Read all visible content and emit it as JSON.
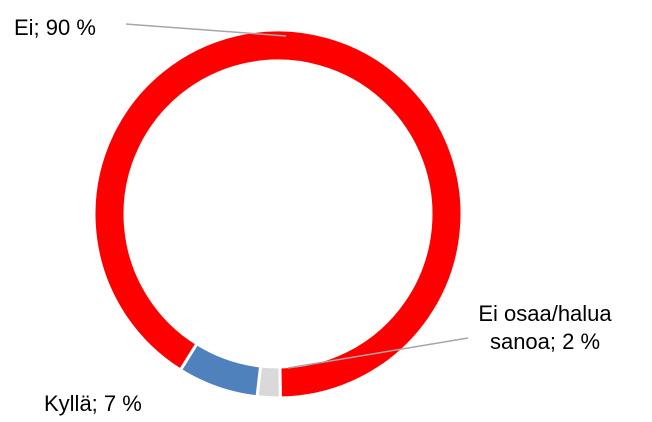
{
  "chart_data": {
    "type": "donut",
    "values": [
      90,
      2,
      7
    ],
    "value_labels": [
      "Ei; 90 %",
      "Ei osaa/halua sanoa; 2 %",
      "Kyllä; 7 %"
    ],
    "colors": [
      "#ff0000",
      "#d9d9d9",
      "#4f81bd"
    ]
  }
}
